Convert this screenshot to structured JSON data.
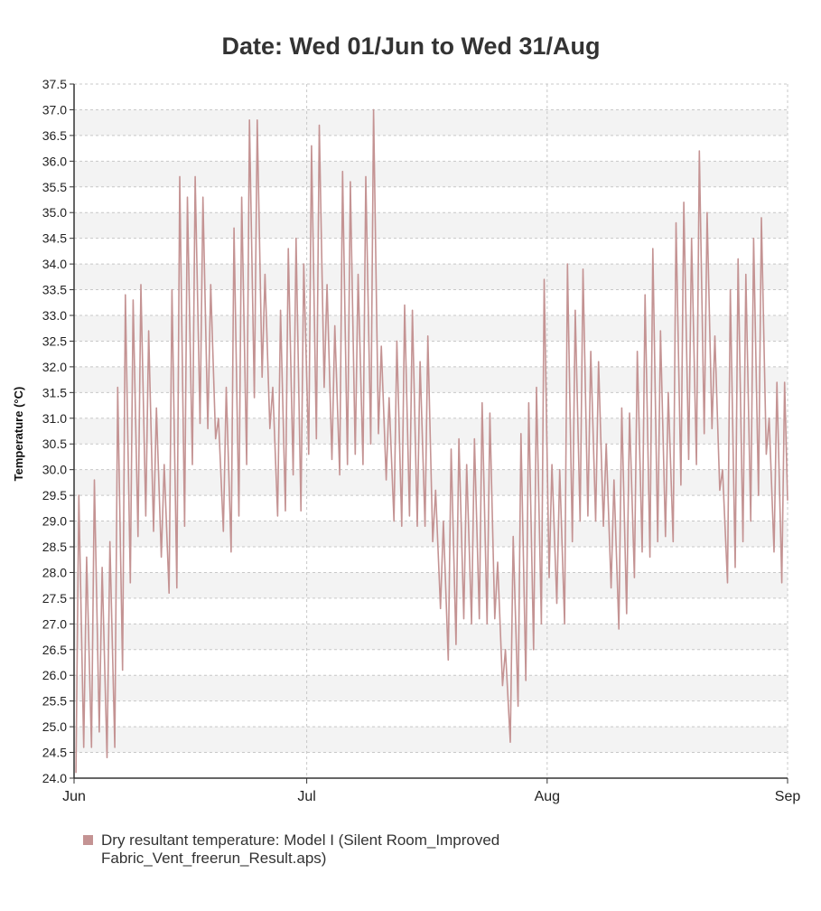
{
  "chart_data": {
    "type": "line",
    "title": "Date: Wed 01/Jun to Wed 31/Aug",
    "xlabel": "",
    "ylabel": "Temperature (°C)",
    "ylim": [
      24.0,
      37.5
    ],
    "yticks": [
      "24.0",
      "24.5",
      "25.0",
      "25.5",
      "26.0",
      "26.5",
      "27.0",
      "27.5",
      "28.0",
      "28.5",
      "29.0",
      "29.5",
      "30.0",
      "30.5",
      "31.0",
      "31.5",
      "32.0",
      "32.5",
      "33.0",
      "33.5",
      "34.0",
      "34.5",
      "35.0",
      "35.5",
      "36.0",
      "36.5",
      "37.0",
      "37.5"
    ],
    "x_day_range": [
      0,
      92
    ],
    "xticks": [
      {
        "day": 0,
        "label": "Jun"
      },
      {
        "day": 30,
        "label": "Jul"
      },
      {
        "day": 61,
        "label": "Aug"
      },
      {
        "day": 92,
        "label": "Sep"
      }
    ],
    "grid": true,
    "series": [
      {
        "name": "Dry resultant temperature: Model I  (Silent Room_Improved Fabric_Vent_freerun_Result.aps)",
        "color": "#c49393",
        "daily_extrema": [
          [
            24.1,
            29.5
          ],
          [
            24.6,
            28.3
          ],
          [
            24.6,
            29.8
          ],
          [
            24.9,
            28.1
          ],
          [
            24.4,
            28.6
          ],
          [
            24.6,
            31.6
          ],
          [
            26.1,
            33.4
          ],
          [
            27.8,
            33.3
          ],
          [
            28.7,
            33.6
          ],
          [
            29.1,
            32.7
          ],
          [
            28.8,
            31.2
          ],
          [
            28.3,
            30.1
          ],
          [
            27.6,
            33.5
          ],
          [
            27.7,
            35.7
          ],
          [
            28.9,
            35.3
          ],
          [
            30.1,
            35.7
          ],
          [
            30.9,
            35.3
          ],
          [
            30.8,
            33.6
          ],
          [
            30.6,
            31.0
          ],
          [
            28.8,
            31.6
          ],
          [
            28.4,
            34.7
          ],
          [
            29.1,
            35.3
          ],
          [
            30.1,
            36.8
          ],
          [
            31.4,
            36.8
          ],
          [
            31.8,
            33.8
          ],
          [
            30.8,
            31.6
          ],
          [
            29.1,
            33.1
          ],
          [
            29.2,
            34.3
          ],
          [
            29.9,
            34.5
          ],
          [
            29.2,
            34.0
          ],
          [
            30.3,
            36.3
          ],
          [
            30.6,
            36.7
          ],
          [
            31.6,
            33.6
          ],
          [
            30.2,
            32.8
          ],
          [
            29.9,
            35.8
          ],
          [
            30.1,
            35.6
          ],
          [
            30.3,
            33.8
          ],
          [
            30.1,
            35.7
          ],
          [
            30.5,
            37.0
          ],
          [
            30.7,
            32.4
          ],
          [
            29.8,
            31.4
          ],
          [
            29.0,
            32.5
          ],
          [
            28.9,
            33.2
          ],
          [
            29.1,
            33.1
          ],
          [
            28.9,
            32.1
          ],
          [
            28.9,
            32.6
          ],
          [
            28.6,
            29.6
          ],
          [
            27.3,
            29.0
          ],
          [
            26.3,
            30.4
          ],
          [
            26.6,
            30.6
          ],
          [
            27.1,
            30.1
          ],
          [
            27.0,
            30.6
          ],
          [
            27.1,
            31.3
          ],
          [
            27.0,
            31.1
          ],
          [
            27.1,
            28.2
          ],
          [
            25.8,
            26.5
          ],
          [
            24.7,
            28.7
          ],
          [
            25.4,
            30.7
          ],
          [
            25.9,
            31.3
          ],
          [
            26.5,
            31.6
          ],
          [
            27.0,
            33.7
          ],
          [
            27.9,
            30.1
          ],
          [
            27.4,
            30.0
          ],
          [
            27.0,
            34.0
          ],
          [
            28.6,
            33.1
          ],
          [
            29.0,
            33.9
          ],
          [
            29.1,
            32.3
          ],
          [
            29.0,
            32.1
          ],
          [
            28.9,
            30.5
          ],
          [
            27.7,
            29.8
          ],
          [
            26.9,
            31.2
          ],
          [
            27.2,
            31.1
          ],
          [
            27.9,
            32.3
          ],
          [
            28.4,
            33.4
          ],
          [
            28.3,
            34.3
          ],
          [
            28.6,
            32.7
          ],
          [
            28.7,
            31.5
          ],
          [
            28.6,
            34.8
          ],
          [
            29.7,
            35.2
          ],
          [
            30.2,
            34.5
          ],
          [
            30.1,
            36.2
          ],
          [
            30.7,
            35.0
          ],
          [
            30.8,
            32.6
          ],
          [
            29.6,
            30.0
          ],
          [
            27.8,
            33.5
          ],
          [
            28.1,
            34.1
          ],
          [
            28.6,
            33.8
          ],
          [
            29.0,
            34.5
          ],
          [
            29.5,
            34.9
          ],
          [
            30.3,
            31.0
          ],
          [
            28.4,
            31.7
          ],
          [
            27.8,
            31.7
          ]
        ],
        "end_value": 29.4
      }
    ]
  },
  "legend": {
    "line1": "Dry resultant temperature: Model I  (Silent Room_Improved",
    "line2": "Fabric_Vent_freerun_Result.aps)",
    "swatch_color": "#c49393"
  }
}
